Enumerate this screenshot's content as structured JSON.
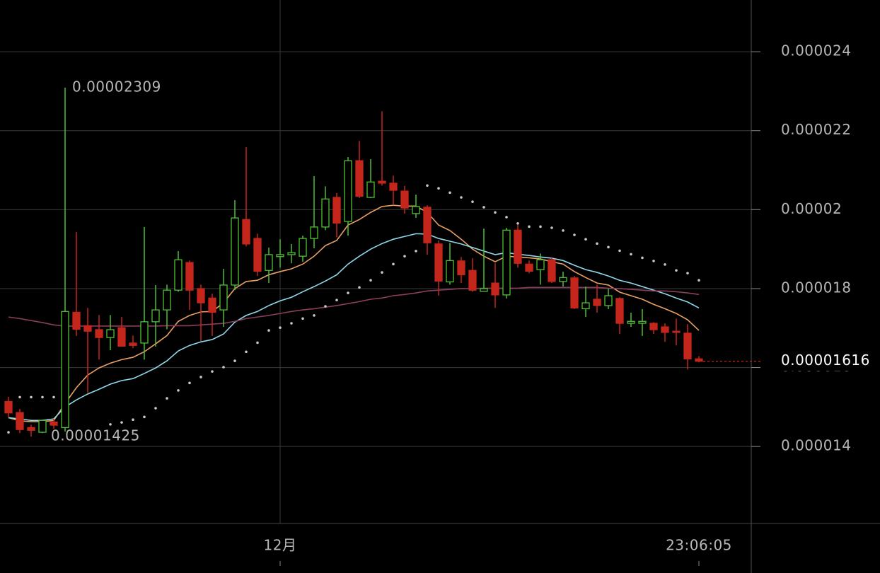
{
  "chart_data": {
    "type": "candlestick",
    "up_color": "#4fbf35",
    "down_color": "#c4261c",
    "categories": [
      null,
      null,
      null,
      null,
      null,
      null,
      null,
      null,
      null,
      null,
      null,
      null,
      null,
      null,
      null,
      null,
      null,
      null,
      null,
      null,
      null,
      null,
      null,
      null,
      "12月",
      null,
      null,
      null,
      null,
      null,
      null,
      null,
      null,
      null,
      null,
      null,
      null,
      null,
      null,
      null,
      null,
      null,
      null,
      null,
      null,
      null,
      null,
      null,
      null,
      null,
      null,
      null,
      null,
      null,
      null,
      null,
      null,
      null,
      null,
      null,
      null,
      "23:06:05"
    ],
    "open": [
      1.514e-05,
      1.486e-05,
      1.448e-05,
      1.436e-05,
      1.462e-05,
      1.448e-05,
      1.74e-05,
      1.706e-05,
      1.696e-05,
      1.676e-05,
      1.701e-05,
      1.662e-05,
      1.662e-05,
      1.716e-05,
      1.746e-05,
      1.796e-05,
      1.866e-05,
      1.8e-05,
      1.776e-05,
      1.746e-05,
      1.809e-05,
      1.975e-05,
      1.927e-05,
      1.846e-05,
      1.881e-05,
      1.886e-05,
      1.882e-05,
      1.927e-05,
      1.956e-05,
      2.031e-05,
      1.97e-05,
      2.124e-05,
      2.031e-05,
      2.072e-05,
      2.067e-05,
      2.047e-05,
      1.99e-05,
      2.006e-05,
      1.913e-05,
      1.817e-05,
      1.87e-05,
      1.846e-05,
      1.793e-05,
      1.814e-05,
      1.784e-05,
      1.948e-05,
      1.862e-05,
      1.848e-05,
      1.873e-05,
      1.818e-05,
      1.827e-05,
      1.749e-05,
      1.773e-05,
      1.757e-05,
      1.775e-05,
      1.712e-05,
      1.712e-05,
      1.712e-05,
      1.703e-05,
      1.692e-05,
      1.687e-05,
      1.622e-05
    ],
    "high": [
      1.526e-05,
      1.495e-05,
      1.455e-05,
      1.468e-05,
      1.47e-05,
      2.309e-05,
      1.943e-05,
      1.751e-05,
      1.733e-05,
      1.733e-05,
      1.728e-05,
      1.681e-05,
      1.956e-05,
      1.809e-05,
      1.81e-05,
      1.895e-05,
      1.871e-05,
      1.81e-05,
      1.787e-05,
      1.85e-05,
      2.024e-05,
      2.158e-05,
      1.939e-05,
      1.904e-05,
      1.925e-05,
      1.913e-05,
      1.934e-05,
      2.085e-05,
      2.059e-05,
      2.042e-05,
      2.133e-05,
      2.174e-05,
      2.128e-05,
      2.249e-05,
      2.086e-05,
      2.06e-05,
      2.038e-05,
      2.011e-05,
      1.922e-05,
      1.916e-05,
      1.88e-05,
      1.877e-05,
      1.952e-05,
      1.864e-05,
      1.954e-05,
      1.961e-05,
      1.871e-05,
      1.889e-05,
      1.88e-05,
      1.843e-05,
      1.832e-05,
      1.805e-05,
      1.81e-05,
      1.8e-05,
      1.778e-05,
      1.739e-05,
      1.748e-05,
      1.715e-05,
      1.712e-05,
      1.724e-05,
      1.71e-05,
      1.629e-05
    ],
    "low": [
      1.474e-05,
      1.434e-05,
      1.425e-05,
      1.434e-05,
      1.445e-05,
      1.438e-05,
      1.68e-05,
      1.536e-05,
      1.62e-05,
      1.644e-05,
      1.653e-05,
      1.649e-05,
      1.62e-05,
      1.653e-05,
      1.697e-05,
      1.792e-05,
      1.746e-05,
      1.667e-05,
      1.68e-05,
      1.703e-05,
      1.796e-05,
      1.907e-05,
      1.832e-05,
      1.814e-05,
      1.853e-05,
      1.864e-05,
      1.868e-05,
      1.902e-05,
      1.948e-05,
      1.93e-05,
      1.934e-05,
      2.029e-05,
      2.029e-05,
      2.061e-05,
      2.011e-05,
      1.99e-05,
      1.979e-05,
      1.886e-05,
      1.782e-05,
      1.81e-05,
      1.814e-05,
      1.792e-05,
      1.792e-05,
      1.751e-05,
      1.775e-05,
      1.853e-05,
      1.839e-05,
      1.81e-05,
      1.814e-05,
      1.805e-05,
      1.748e-05,
      1.728e-05,
      1.739e-05,
      1.748e-05,
      1.685e-05,
      1.703e-05,
      1.68e-05,
      1.685e-05,
      1.665e-05,
      1.656e-05,
      1.595e-05,
      1.613e-05
    ],
    "close": [
      1.485e-05,
      1.443e-05,
      1.441e-05,
      1.466e-05,
      1.454e-05,
      1.742e-05,
      1.697e-05,
      1.692e-05,
      1.676e-05,
      1.696e-05,
      1.654e-05,
      1.656e-05,
      1.716e-05,
      1.746e-05,
      1.796e-05,
      1.873e-05,
      1.796e-05,
      1.764e-05,
      1.74e-05,
      1.809e-05,
      1.979e-05,
      1.913e-05,
      1.844e-05,
      1.886e-05,
      1.886e-05,
      1.891e-05,
      1.927e-05,
      1.956e-05,
      2.027e-05,
      1.966e-05,
      2.124e-05,
      2.034e-05,
      2.07e-05,
      2.067e-05,
      2.049e-05,
      2.004e-05,
      2.008e-05,
      1.916e-05,
      1.819e-05,
      1.871e-05,
      1.835e-05,
      1.796e-05,
      1.8e-05,
      1.784e-05,
      1.948e-05,
      1.864e-05,
      1.844e-05,
      1.873e-05,
      1.818e-05,
      1.828e-05,
      1.751e-05,
      1.764e-05,
      1.757e-05,
      1.782e-05,
      1.712e-05,
      1.717e-05,
      1.717e-05,
      1.696e-05,
      1.689e-05,
      1.689e-05,
      1.622e-05,
      1.616e-05
    ],
    "lines": [
      {
        "color": "#e9a064",
        "values": [
          1.473e-05,
          1.465e-05,
          1.463e-05,
          1.463e-05,
          1.466e-05,
          1.509e-05,
          1.549e-05,
          1.581e-05,
          1.599e-05,
          1.611e-05,
          1.62e-05,
          1.626e-05,
          1.64e-05,
          1.66e-05,
          1.681e-05,
          1.717e-05,
          1.732e-05,
          1.741e-05,
          1.742e-05,
          1.764e-05,
          1.8e-05,
          1.818e-05,
          1.821e-05,
          1.835e-05,
          1.843e-05,
          1.85e-05,
          1.862e-05,
          1.882e-05,
          1.909e-05,
          1.922e-05,
          1.961e-05,
          1.975e-05,
          1.993e-05,
          2.008e-05,
          2.011e-05,
          2.009e-05,
          2.009e-05,
          1.993e-05,
          1.961e-05,
          1.947e-05,
          1.925e-05,
          1.9e-05,
          1.882e-05,
          1.868e-05,
          1.882e-05,
          1.88e-05,
          1.878e-05,
          1.875e-05,
          1.868e-05,
          1.862e-05,
          1.843e-05,
          1.828e-05,
          1.814e-05,
          1.809e-05,
          1.791e-05,
          1.782e-05,
          1.773e-05,
          1.76e-05,
          1.749e-05,
          1.737e-05,
          1.721e-05,
          1.694e-05
        ]
      },
      {
        "color": "#8fd9e9",
        "values": [
          1.473e-05,
          1.47e-05,
          1.466e-05,
          1.466e-05,
          1.47e-05,
          1.5e-05,
          1.518e-05,
          1.533e-05,
          1.545e-05,
          1.558e-05,
          1.567e-05,
          1.572e-05,
          1.585e-05,
          1.599e-05,
          1.617e-05,
          1.642e-05,
          1.656e-05,
          1.665e-05,
          1.671e-05,
          1.685e-05,
          1.715e-05,
          1.732e-05,
          1.742e-05,
          1.757e-05,
          1.769e-05,
          1.778e-05,
          1.792e-05,
          1.805e-05,
          1.819e-05,
          1.835e-05,
          1.862e-05,
          1.882e-05,
          1.9e-05,
          1.914e-05,
          1.925e-05,
          1.932e-05,
          1.939e-05,
          1.938e-05,
          1.927e-05,
          1.92e-05,
          1.913e-05,
          1.904e-05,
          1.895e-05,
          1.886e-05,
          1.891e-05,
          1.887e-05,
          1.884e-05,
          1.88e-05,
          1.877e-05,
          1.871e-05,
          1.859e-05,
          1.848e-05,
          1.841e-05,
          1.832e-05,
          1.821e-05,
          1.814e-05,
          1.805e-05,
          1.796e-05,
          1.787e-05,
          1.776e-05,
          1.766e-05,
          1.751e-05
        ]
      },
      {
        "color": "#8c3d5e",
        "values": [
          1.728e-05,
          1.724e-05,
          1.719e-05,
          1.714e-05,
          1.708e-05,
          1.705e-05,
          1.705e-05,
          1.705e-05,
          1.705e-05,
          1.705e-05,
          1.705e-05,
          1.705e-05,
          1.705e-05,
          1.705e-05,
          1.706e-05,
          1.706e-05,
          1.706e-05,
          1.708e-05,
          1.71e-05,
          1.712e-05,
          1.717e-05,
          1.724e-05,
          1.728e-05,
          1.732e-05,
          1.737e-05,
          1.742e-05,
          1.746e-05,
          1.749e-05,
          1.753e-05,
          1.757e-05,
          1.762e-05,
          1.767e-05,
          1.773e-05,
          1.776e-05,
          1.782e-05,
          1.785e-05,
          1.789e-05,
          1.794e-05,
          1.796e-05,
          1.798e-05,
          1.8e-05,
          1.8e-05,
          1.801e-05,
          1.801e-05,
          1.801e-05,
          1.801e-05,
          1.803e-05,
          1.803e-05,
          1.803e-05,
          1.803e-05,
          1.803e-05,
          1.803e-05,
          1.803e-05,
          1.801e-05,
          1.8e-05,
          1.798e-05,
          1.796e-05,
          1.794e-05,
          1.794e-05,
          1.792e-05,
          1.789e-05,
          1.785e-05
        ]
      }
    ],
    "sar": {
      "color": "#c8c8c8",
      "values": [
        1.436e-05,
        1.525e-05,
        1.525e-05,
        1.525e-05,
        1.525e-05,
        null,
        null,
        null,
        null,
        1.456e-05,
        1.461e-05,
        1.468e-05,
        1.475e-05,
        1.497e-05,
        1.522e-05,
        1.542e-05,
        1.561e-05,
        1.576e-05,
        1.59e-05,
        1.601e-05,
        1.617e-05,
        1.64e-05,
        1.663e-05,
        1.694e-05,
        1.701e-05,
        1.712e-05,
        1.724e-05,
        1.732e-05,
        1.755e-05,
        1.771e-05,
        1.789e-05,
        1.803e-05,
        1.821e-05,
        1.841e-05,
        1.862e-05,
        1.882e-05,
        1.895e-05,
        2.061e-05,
        2.054e-05,
        2.043e-05,
        2.031e-05,
        2.02e-05,
        2.006e-05,
        1.993e-05,
        1.981e-05,
        1.965e-05,
        1.957e-05,
        1.957e-05,
        1.954e-05,
        1.947e-05,
        1.936e-05,
        1.925e-05,
        1.914e-05,
        1.905e-05,
        1.896e-05,
        1.887e-05,
        1.878e-05,
        1.87e-05,
        1.861e-05,
        1.846e-05,
        1.839e-05,
        1.821e-05
      ]
    },
    "ylim": [
      1.205e-05,
      2.531e-05
    ],
    "yticks": [
      1.4e-05,
      1.6e-05,
      1.8e-05,
      2e-05,
      2.2e-05,
      2.4e-05
    ],
    "grid": true
  }
}
